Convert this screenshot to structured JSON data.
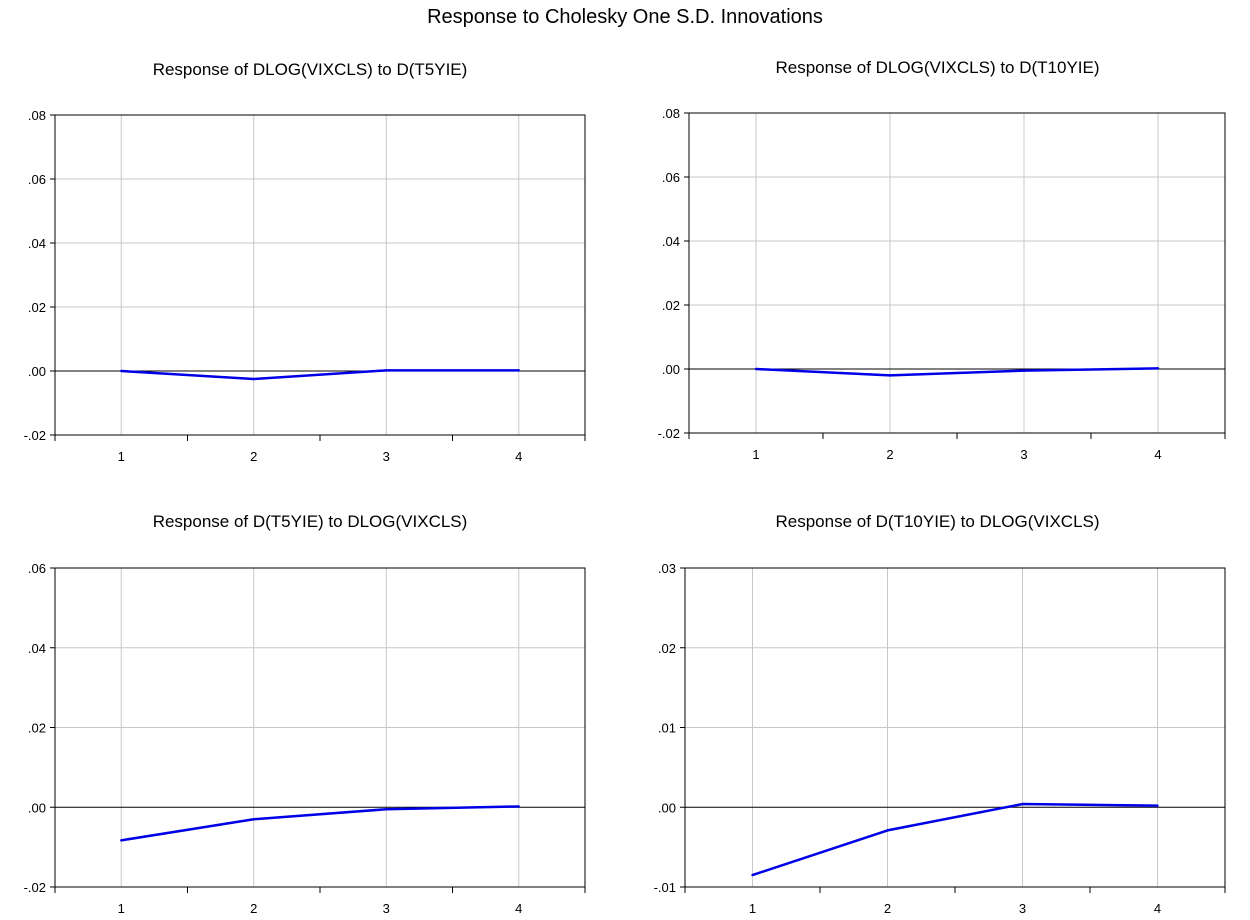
{
  "figure": {
    "title": "Response to Cholesky One S.D. Innovations"
  },
  "style": {
    "line_color": "#0000e6",
    "grid_color": "#c8c8c8",
    "zero_line_color": "#000000"
  },
  "chart_data": [
    {
      "type": "line",
      "title": "Response of DLOG(VIXCLS) to D(T5YIE)",
      "xlabel": "",
      "ylabel": "",
      "categories": [
        "1",
        "2",
        "3",
        "4"
      ],
      "series": [
        {
          "values": [
            0.0,
            -0.0025,
            0.0002,
            0.0002
          ]
        }
      ],
      "ylim": [
        -0.02,
        0.08
      ],
      "yticks": [
        -0.02,
        0.0,
        0.02,
        0.04,
        0.06,
        0.08
      ],
      "ytick_labels": [
        "-.02",
        ".00",
        ".02",
        ".04",
        ".06",
        ".08"
      ],
      "grid": true
    },
    {
      "type": "line",
      "title": "Response of DLOG(VIXCLS) to D(T10YIE)",
      "xlabel": "",
      "ylabel": "",
      "categories": [
        "1",
        "2",
        "3",
        "4"
      ],
      "series": [
        {
          "values": [
            0.0,
            -0.002,
            -0.0005,
            0.0002
          ]
        }
      ],
      "ylim": [
        -0.02,
        0.08
      ],
      "yticks": [
        -0.02,
        0.0,
        0.02,
        0.04,
        0.06,
        0.08
      ],
      "ytick_labels": [
        "-.02",
        ".00",
        ".02",
        ".04",
        ".06",
        ".08"
      ],
      "grid": true
    },
    {
      "type": "line",
      "title": "Response of D(T5YIE) to DLOG(VIXCLS)",
      "xlabel": "",
      "ylabel": "",
      "categories": [
        "1",
        "2",
        "3",
        "4"
      ],
      "series": [
        {
          "values": [
            -0.0083,
            -0.003,
            -0.0005,
            0.0002
          ]
        }
      ],
      "ylim": [
        -0.02,
        0.06
      ],
      "yticks": [
        -0.02,
        0.0,
        0.02,
        0.04,
        0.06
      ],
      "ytick_labels": [
        "-.02",
        ".00",
        ".02",
        ".04",
        ".06"
      ],
      "grid": true
    },
    {
      "type": "line",
      "title": "Response of D(T10YIE) to DLOG(VIXCLS)",
      "xlabel": "",
      "ylabel": "",
      "categories": [
        "1",
        "2",
        "3",
        "4"
      ],
      "series": [
        {
          "values": [
            -0.0085,
            -0.0029,
            0.0004,
            0.0002
          ]
        }
      ],
      "ylim": [
        -0.01,
        0.03
      ],
      "yticks": [
        -0.01,
        0.0,
        0.01,
        0.02,
        0.03
      ],
      "ytick_labels": [
        "-.01",
        ".00",
        ".01",
        ".02",
        ".03"
      ],
      "grid": true
    }
  ]
}
